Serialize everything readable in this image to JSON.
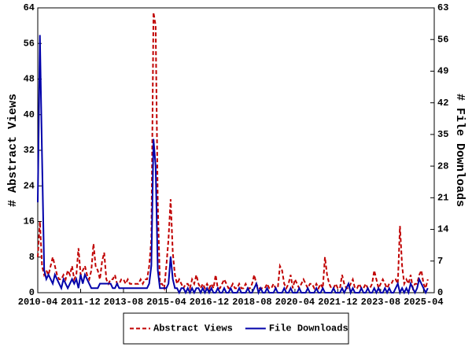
{
  "chart_data": {
    "type": "line",
    "x": [
      "2010-04",
      "2010-05",
      "2010-06",
      "2010-07",
      "2010-08",
      "2010-09",
      "2010-10",
      "2010-11",
      "2010-12",
      "2011-01",
      "2011-02",
      "2011-03",
      "2011-04",
      "2011-05",
      "2011-06",
      "2011-07",
      "2011-08",
      "2011-09",
      "2011-10",
      "2011-11",
      "2011-12",
      "2012-01",
      "2012-02",
      "2012-03",
      "2012-04",
      "2012-05",
      "2012-06",
      "2012-07",
      "2012-08",
      "2012-09",
      "2012-10",
      "2012-11",
      "2012-12",
      "2013-01",
      "2013-02",
      "2013-03",
      "2013-04",
      "2013-05",
      "2013-06",
      "2013-07",
      "2013-08",
      "2013-09",
      "2013-10",
      "2013-11",
      "2013-12",
      "2014-01",
      "2014-02",
      "2014-03",
      "2014-04",
      "2014-05",
      "2014-06",
      "2014-07",
      "2014-08",
      "2014-09",
      "2014-10",
      "2014-11",
      "2014-12",
      "2015-01",
      "2015-02",
      "2015-03",
      "2015-04",
      "2015-05",
      "2015-06",
      "2015-07",
      "2015-08",
      "2015-09",
      "2015-10",
      "2015-11",
      "2015-12",
      "2016-01",
      "2016-02",
      "2016-03",
      "2016-04",
      "2016-05",
      "2016-06",
      "2016-07",
      "2016-08",
      "2016-09",
      "2016-10",
      "2016-11",
      "2016-12",
      "2017-01",
      "2017-02",
      "2017-03",
      "2017-04",
      "2017-05",
      "2017-06",
      "2017-07",
      "2017-08",
      "2017-09",
      "2017-10",
      "2017-11",
      "2017-12",
      "2018-01",
      "2018-02",
      "2018-03",
      "2018-04",
      "2018-05",
      "2018-06",
      "2018-07",
      "2018-08",
      "2018-09",
      "2018-10",
      "2018-11",
      "2018-12",
      "2019-01",
      "2019-02",
      "2019-03",
      "2019-04",
      "2019-05",
      "2019-06",
      "2019-07",
      "2019-08",
      "2019-09",
      "2019-10",
      "2019-11",
      "2019-12",
      "2020-01",
      "2020-02",
      "2020-03",
      "2020-04",
      "2020-05",
      "2020-06",
      "2020-07",
      "2020-08",
      "2020-09",
      "2020-10",
      "2020-11",
      "2020-12",
      "2021-01",
      "2021-02",
      "2021-03",
      "2021-04",
      "2021-05",
      "2021-06",
      "2021-07",
      "2021-08",
      "2021-09",
      "2021-10",
      "2021-11",
      "2021-12",
      "2022-01",
      "2022-02",
      "2022-03",
      "2022-04",
      "2022-05",
      "2022-06",
      "2022-07",
      "2022-08",
      "2022-09",
      "2022-10",
      "2022-11",
      "2022-12",
      "2023-01",
      "2023-02",
      "2023-03",
      "2023-04",
      "2023-05",
      "2023-06",
      "2023-07",
      "2023-08",
      "2023-09",
      "2023-10",
      "2023-11",
      "2023-12",
      "2024-01",
      "2024-02",
      "2024-03",
      "2024-04",
      "2024-05",
      "2024-06",
      "2024-07",
      "2024-08",
      "2024-09",
      "2024-10",
      "2024-11",
      "2024-12",
      "2025-01",
      "2025-02",
      "2025-03",
      "2025-04",
      "2025-05",
      "2025-06"
    ],
    "series": [
      {
        "name": "Abstract Views",
        "color": "#c00000",
        "dashed": true,
        "values": [
          8,
          16,
          6,
          4,
          5,
          4,
          6,
          8,
          6,
          4,
          3,
          3,
          4,
          3,
          5,
          4,
          6,
          3,
          4,
          10,
          4,
          5,
          6,
          4,
          3,
          5,
          11,
          6,
          5,
          3,
          7,
          9,
          3,
          2,
          3,
          3,
          4,
          2,
          2,
          3,
          3,
          2,
          3,
          2,
          2,
          2,
          2,
          2,
          3,
          2,
          3,
          3,
          6,
          12,
          63,
          60,
          20,
          2,
          2,
          1,
          6,
          12,
          21,
          9,
          4,
          2,
          3,
          2,
          1,
          2,
          2,
          1,
          3,
          2,
          4,
          2,
          1,
          2,
          1,
          2,
          1,
          2,
          1,
          4,
          1,
          1,
          2,
          3,
          2,
          1,
          1,
          2,
          1,
          1,
          2,
          1,
          1,
          2,
          1,
          1,
          2,
          4,
          2,
          1,
          1,
          1,
          1,
          2,
          1,
          1,
          2,
          1,
          1,
          6,
          5,
          2,
          1,
          2,
          4,
          1,
          3,
          2,
          1,
          2,
          3,
          2,
          1,
          2,
          2,
          1,
          2,
          1,
          2,
          1,
          8,
          4,
          2,
          1,
          1,
          2,
          1,
          1,
          4,
          2,
          1,
          1,
          2,
          3,
          1,
          1,
          2,
          1,
          1,
          2,
          1,
          1,
          2,
          5,
          3,
          1,
          2,
          3,
          2,
          1,
          2,
          2,
          3,
          3,
          2,
          15,
          6,
          2,
          3,
          2,
          4,
          1,
          2,
          2,
          4,
          5,
          2,
          1,
          3
        ]
      },
      {
        "name": "File Downloads",
        "color": "#0000aa",
        "dashed": false,
        "axis": "y2",
        "values": [
          20,
          57,
          30,
          5,
          3,
          4,
          3,
          2,
          4,
          3,
          2,
          1,
          3,
          2,
          1,
          2,
          3,
          2,
          3,
          1,
          4,
          2,
          4,
          3,
          2,
          1,
          1,
          1,
          1,
          2,
          2,
          2,
          2,
          2,
          2,
          1,
          1,
          2,
          1,
          1,
          1,
          1,
          1,
          1,
          1,
          1,
          1,
          1,
          1,
          1,
          1,
          1,
          2,
          6,
          34,
          28,
          5,
          1,
          1,
          1,
          1,
          2,
          8,
          3,
          1,
          1,
          0,
          1,
          1,
          0,
          1,
          0,
          1,
          0,
          1,
          1,
          0,
          1,
          0,
          1,
          0,
          1,
          0,
          0,
          1,
          0,
          0,
          1,
          0,
          0,
          1,
          0,
          0,
          0,
          1,
          0,
          0,
          0,
          1,
          0,
          0,
          1,
          2,
          0,
          1,
          0,
          0,
          1,
          0,
          0,
          0,
          1,
          0,
          0,
          0,
          1,
          0,
          0,
          1,
          0,
          0,
          0,
          1,
          0,
          0,
          0,
          1,
          0,
          0,
          0,
          1,
          0,
          0,
          1,
          0,
          0,
          0,
          0,
          1,
          0,
          0,
          0,
          1,
          0,
          1,
          2,
          0,
          1,
          0,
          0,
          0,
          1,
          0,
          0,
          1,
          0,
          0,
          1,
          0,
          1,
          0,
          0,
          1,
          0,
          1,
          0,
          0,
          1,
          2,
          0,
          1,
          0,
          1,
          0,
          2,
          1,
          0,
          1,
          3,
          2,
          1,
          0,
          1
        ]
      }
    ],
    "ylabel": "# Abstract Views",
    "y2label": "# File Downloads",
    "xlim": [
      "2010-04",
      "2025-09"
    ],
    "xticks": [
      "2010-04",
      "2011-12",
      "2013-08",
      "2015-04",
      "2016-12",
      "2018-08",
      "2020-04",
      "2021-12",
      "2023-08",
      "2025-04"
    ],
    "ylim": [
      0,
      64
    ],
    "yticks": [
      0,
      8,
      16,
      24,
      32,
      40,
      48,
      56,
      64
    ],
    "y2lim": [
      0,
      63
    ],
    "y2ticks": [
      0,
      7,
      14,
      21,
      28,
      35,
      42,
      49,
      56,
      63
    ],
    "legend": "bottom"
  }
}
